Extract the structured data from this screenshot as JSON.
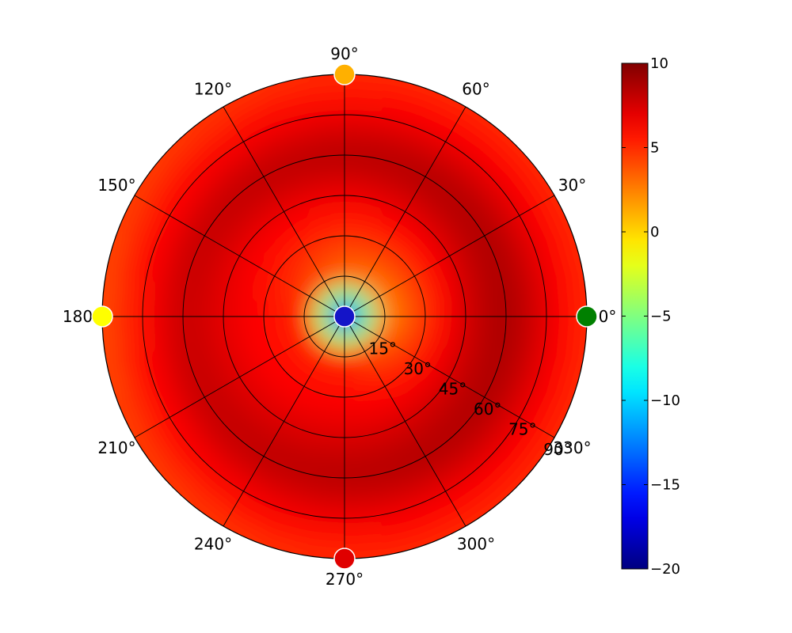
{
  "chart_data": {
    "type": "heatmap",
    "projection": "polar",
    "title": "",
    "theta_tick_labels": [
      "0°",
      "30°",
      "60°",
      "90°",
      "120°",
      "150°",
      "180°",
      "210°",
      "240°",
      "270°",
      "300°",
      "330°"
    ],
    "theta_ticks_deg": [
      0,
      30,
      60,
      90,
      120,
      150,
      180,
      210,
      240,
      270,
      300,
      330
    ],
    "r_tick_labels": [
      "15°",
      "30°",
      "45°",
      "60°",
      "75°",
      "90°"
    ],
    "r_ticks": [
      15,
      30,
      45,
      60,
      75,
      90
    ],
    "r_range": [
      0,
      90
    ],
    "r_label_angle_deg": 330,
    "grid": true,
    "colormap": "jet",
    "color_range": [
      -20,
      10
    ],
    "colorbar": {
      "placement": "right",
      "tick_labels": [
        "10",
        "5",
        "0",
        "−5",
        "−10",
        "−15",
        "−20"
      ],
      "ticks": [
        10,
        5,
        0,
        -5,
        -10,
        -15,
        -20
      ]
    },
    "field": {
      "description_units": "value by theta (deg) and r (deg)",
      "azimuth_profile": [
        {
          "theta": 0,
          "r": 15,
          "value": 2
        },
        {
          "theta": 0,
          "r": 45,
          "value": 7.5
        },
        {
          "theta": 0,
          "r": 60,
          "value": 9
        },
        {
          "theta": 0,
          "r": 90,
          "value": 5
        },
        {
          "theta": 90,
          "r": 15,
          "value": 3
        },
        {
          "theta": 90,
          "r": 60,
          "value": 8.5
        },
        {
          "theta": 90,
          "r": 90,
          "value": 5
        },
        {
          "theta": 180,
          "r": 15,
          "value": 5
        },
        {
          "theta": 180,
          "r": 60,
          "value": 8
        },
        {
          "theta": 180,
          "r": 90,
          "value": 4
        },
        {
          "theta": 270,
          "r": 15,
          "value": 5
        },
        {
          "theta": 270,
          "r": 60,
          "value": 8.5
        },
        {
          "theta": 270,
          "r": 90,
          "value": 5
        }
      ]
    },
    "markers": [
      {
        "theta": 0,
        "r": 0,
        "value": -17,
        "color": "#1414c8"
      },
      {
        "theta": 0,
        "r": 90,
        "value": -3,
        "color": "#008000"
      },
      {
        "theta": 90,
        "r": 90,
        "value": 3,
        "color": "#ffb000"
      },
      {
        "theta": 180,
        "r": 90,
        "value": 0,
        "color": "#ffff00"
      },
      {
        "theta": 270,
        "r": 90,
        "value": 8,
        "color": "#e00000"
      }
    ]
  }
}
